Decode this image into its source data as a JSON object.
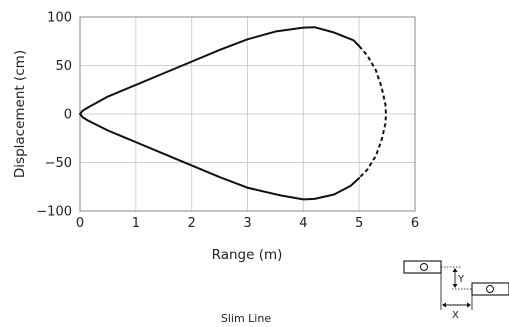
{
  "chart_data": {
    "type": "line",
    "title": "",
    "xlabel": "Range (m)",
    "ylabel": "Displacement (cm)",
    "xlim": [
      0,
      6
    ],
    "ylim": [
      -100,
      100
    ],
    "x_ticks": [
      "0",
      "1",
      "2",
      "3",
      "4",
      "5",
      "6"
    ],
    "y_ticks": [
      "100",
      "50",
      "0",
      "−50",
      "−100"
    ],
    "grid": true,
    "series": [
      {
        "style": "solid",
        "color": "#111111",
        "points": [
          [
            5.0,
            -66
          ],
          [
            4.85,
            -74
          ],
          [
            4.55,
            -83
          ],
          [
            4.2,
            -87.5
          ],
          [
            4.0,
            -88
          ],
          [
            3.6,
            -84
          ],
          [
            3.0,
            -76
          ],
          [
            2.5,
            -65
          ],
          [
            2.0,
            -53
          ],
          [
            1.5,
            -41
          ],
          [
            1.0,
            -29
          ],
          [
            0.5,
            -17
          ],
          [
            0.15,
            -7
          ],
          [
            0.05,
            -3.5
          ],
          [
            0.0,
            0
          ],
          [
            0.05,
            3.5
          ],
          [
            0.15,
            7
          ],
          [
            0.5,
            18
          ],
          [
            1.0,
            30
          ],
          [
            1.5,
            42
          ],
          [
            2.0,
            54
          ],
          [
            2.5,
            66
          ],
          [
            3.0,
            77
          ],
          [
            3.5,
            85
          ],
          [
            4.0,
            89
          ],
          [
            4.2,
            89.5
          ],
          [
            4.55,
            84
          ],
          [
            4.9,
            76
          ],
          [
            5.0,
            70
          ]
        ]
      },
      {
        "style": "dashed",
        "color": "#111111",
        "points": [
          [
            5.0,
            70
          ],
          [
            5.15,
            60
          ],
          [
            5.3,
            45
          ],
          [
            5.4,
            28
          ],
          [
            5.47,
            10
          ],
          [
            5.48,
            0
          ],
          [
            5.47,
            -10
          ],
          [
            5.4,
            -27
          ],
          [
            5.3,
            -43
          ],
          [
            5.15,
            -57
          ],
          [
            5.0,
            -66
          ]
        ]
      }
    ]
  },
  "diagram": {
    "x_label": "X",
    "y_label": "Y"
  },
  "caption": "Slim Line"
}
